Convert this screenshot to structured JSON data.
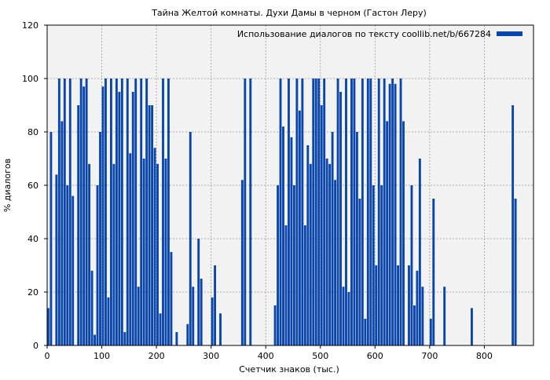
{
  "chart_data": {
    "type": "bar",
    "title": "Тайна Желтой комнаты. Духи Дамы в черном (Гастон Леру)",
    "xlabel": "Счетчик знаков (тыс.)",
    "ylabel": "% диалогов",
    "xlim": [
      0,
      890
    ],
    "ylim": [
      0,
      120
    ],
    "x_ticks": [
      0,
      100,
      200,
      300,
      400,
      500,
      600,
      700,
      800
    ],
    "y_ticks": [
      0,
      20,
      40,
      60,
      80,
      100,
      120
    ],
    "grid": true,
    "legend_position": "top-right",
    "colors": {
      "bars": "#0a46aa",
      "plot_bg": "#f2f2f2",
      "grid": "#999999",
      "frame": "#000000"
    },
    "series": [
      {
        "name": "Использование диалогов по тексту coollib.net/b/667284",
        "x_step": 5,
        "x_start": 0,
        "values": [
          14,
          80,
          0,
          64,
          100,
          84,
          100,
          60,
          100,
          56,
          0,
          90,
          100,
          97,
          100,
          68,
          28,
          4,
          60,
          80,
          97,
          100,
          18,
          100,
          68,
          100,
          95,
          100,
          5,
          100,
          72,
          95,
          100,
          22,
          100,
          70,
          100,
          90,
          90,
          74,
          68,
          12,
          100,
          70,
          100,
          35,
          0,
          5,
          0,
          0,
          0,
          8,
          80,
          22,
          0,
          40,
          25,
          0,
          0,
          0,
          18,
          30,
          0,
          12,
          0,
          0,
          0,
          0,
          0,
          0,
          0,
          62,
          100,
          0,
          100,
          0,
          0,
          0,
          0,
          0,
          0,
          0,
          0,
          15,
          60,
          100,
          82,
          45,
          100,
          78,
          60,
          100,
          88,
          100,
          45,
          75,
          68,
          100,
          100,
          100,
          90,
          100,
          70,
          68,
          80,
          62,
          100,
          95,
          22,
          100,
          20,
          100,
          100,
          80,
          55,
          100,
          10,
          100,
          100,
          60,
          30,
          100,
          60,
          100,
          84,
          98,
          100,
          98,
          30,
          100,
          84,
          0,
          30,
          60,
          15,
          28,
          70,
          22,
          0,
          0,
          10,
          55,
          0,
          0,
          0,
          22,
          0,
          0,
          0,
          0,
          0,
          0,
          0,
          0,
          0,
          14,
          0,
          0,
          0,
          0,
          0,
          0,
          0,
          0,
          0,
          0,
          0,
          0,
          0,
          0,
          90,
          55,
          0,
          0,
          0,
          0,
          0,
          0,
          0,
          0,
          0,
          0,
          0,
          0,
          0,
          0,
          0,
          0,
          0,
          0,
          0,
          0,
          0,
          0,
          0,
          0,
          0,
          0,
          0,
          0
        ]
      }
    ]
  }
}
